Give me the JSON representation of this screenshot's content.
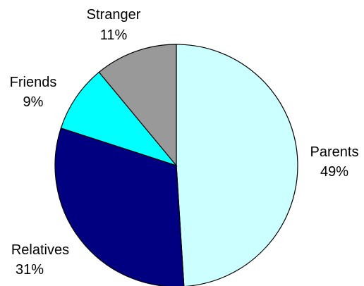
{
  "chart_data": {
    "type": "pie",
    "title": "",
    "start_angle_deg": 0,
    "direction": "clockwise",
    "slices": [
      {
        "label": "Parents",
        "percent_label": "49%",
        "value": 49,
        "color": "#CCFFFF"
      },
      {
        "label": "Relatives",
        "percent_label": "31%",
        "value": 31,
        "color": "#000080"
      },
      {
        "label": "Friends",
        "percent_label": "9%",
        "value": 9,
        "color": "#00FFFF"
      },
      {
        "label": "Stranger",
        "percent_label": "11%",
        "value": 11,
        "color": "#999999"
      }
    ]
  }
}
